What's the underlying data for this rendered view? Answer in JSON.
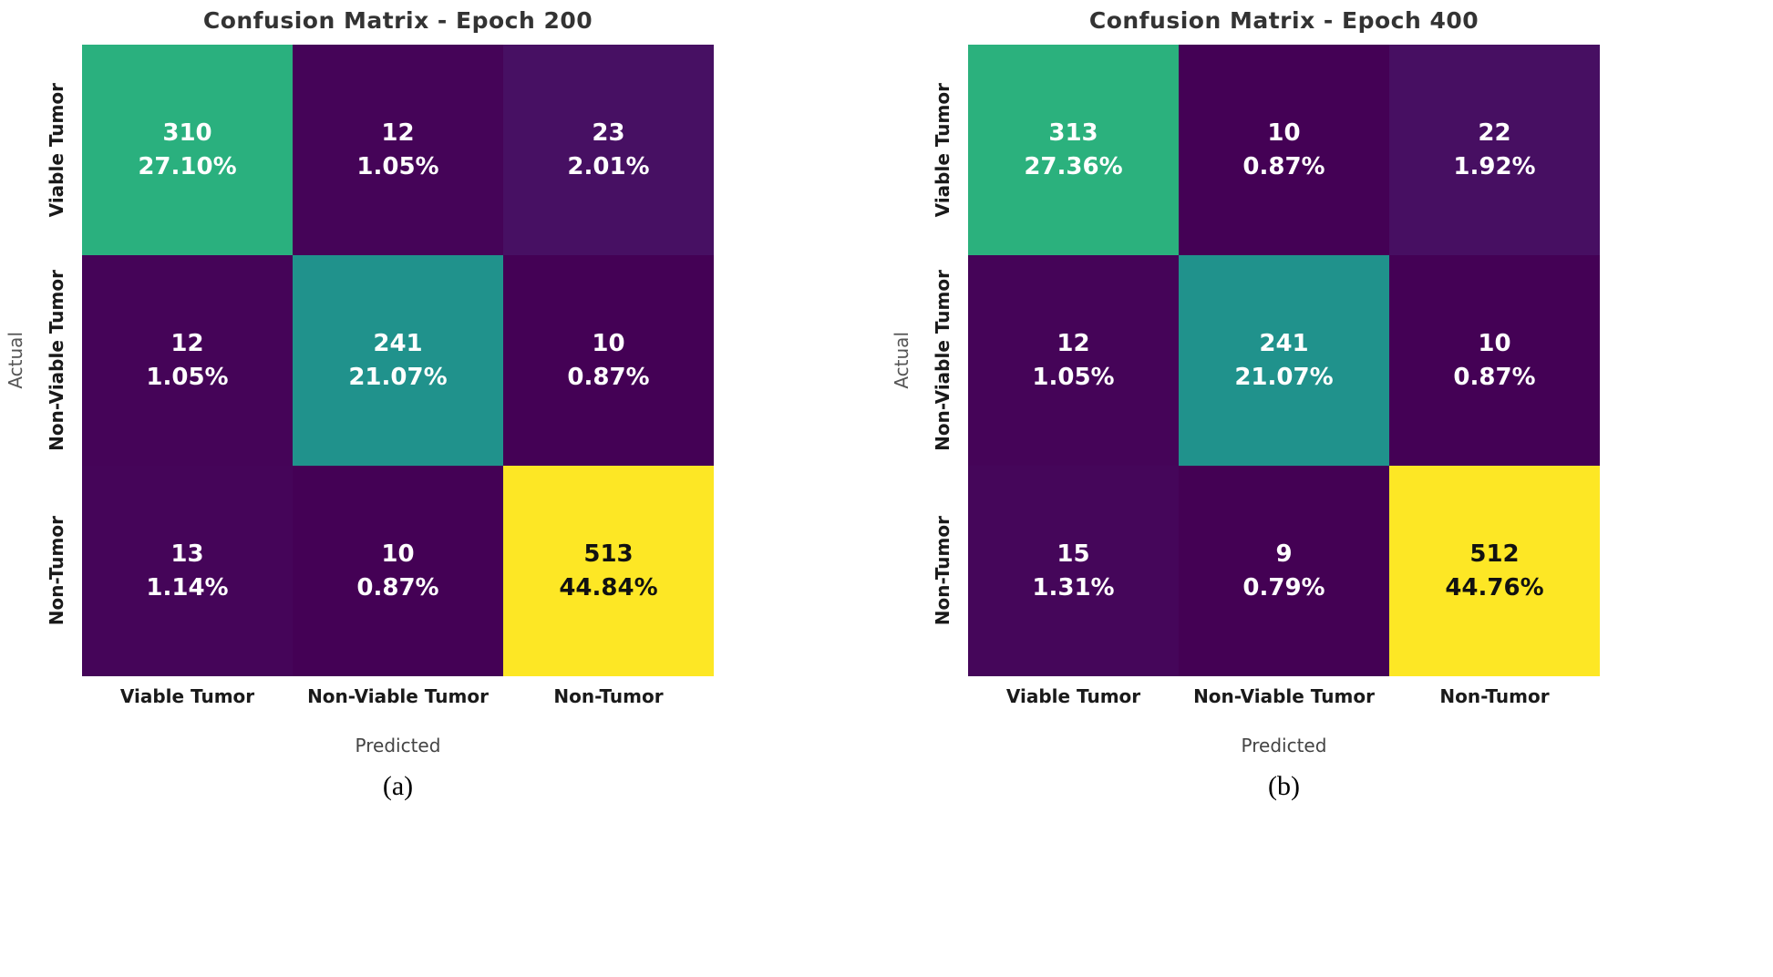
{
  "figure": {
    "background": "#ffffff",
    "colormap": "viridis"
  },
  "chart_data": [
    {
      "type": "heatmap",
      "title": "Confusion Matrix - Epoch 200",
      "caption": "(a)",
      "xlabel": "Predicted",
      "ylabel": "Actual",
      "x_categories": [
        "Viable Tumor",
        "Non-Viable Tumor",
        "Non-Tumor"
      ],
      "y_categories": [
        "Viable Tumor",
        "Non-Viable Tumor",
        "Non-Tumor"
      ],
      "counts": [
        [
          310,
          12,
          23
        ],
        [
          12,
          241,
          10
        ],
        [
          13,
          10,
          513
        ]
      ],
      "percents": [
        [
          "27.10%",
          "1.05%",
          "2.01%"
        ],
        [
          "1.05%",
          "21.07%",
          "0.87%"
        ],
        [
          "1.14%",
          "0.87%",
          "44.84%"
        ]
      ],
      "cell_colors": [
        [
          "#2ab07e",
          "#450458",
          "#471063"
        ],
        [
          "#450458",
          "#20928c",
          "#440155"
        ],
        [
          "#450559",
          "#440155",
          "#fde725"
        ]
      ],
      "text_colors": [
        [
          "#ffffff",
          "#ffffff",
          "#ffffff"
        ],
        [
          "#ffffff",
          "#ffffff",
          "#ffffff"
        ],
        [
          "#ffffff",
          "#ffffff",
          "#111111"
        ]
      ],
      "value_range": [
        9,
        513
      ]
    },
    {
      "type": "heatmap",
      "title": "Confusion Matrix - Epoch 400",
      "caption": "(b)",
      "xlabel": "Predicted",
      "ylabel": "Actual",
      "x_categories": [
        "Viable Tumor",
        "Non-Viable Tumor",
        "Non-Tumor"
      ],
      "y_categories": [
        "Viable Tumor",
        "Non-Viable Tumor",
        "Non-Tumor"
      ],
      "counts": [
        [
          313,
          10,
          22
        ],
        [
          12,
          241,
          10
        ],
        [
          15,
          9,
          512
        ]
      ],
      "percents": [
        [
          "27.36%",
          "0.87%",
          "1.92%"
        ],
        [
          "1.05%",
          "21.07%",
          "0.87%"
        ],
        [
          "1.31%",
          "0.79%",
          "44.76%"
        ]
      ],
      "cell_colors": [
        [
          "#2bb17d",
          "#440155",
          "#470f62"
        ],
        [
          "#450458",
          "#20928c",
          "#440155"
        ],
        [
          "#45065a",
          "#440154",
          "#fde725"
        ]
      ],
      "text_colors": [
        [
          "#ffffff",
          "#ffffff",
          "#ffffff"
        ],
        [
          "#ffffff",
          "#ffffff",
          "#ffffff"
        ],
        [
          "#ffffff",
          "#ffffff",
          "#111111"
        ]
      ],
      "value_range": [
        9,
        512
      ]
    }
  ]
}
